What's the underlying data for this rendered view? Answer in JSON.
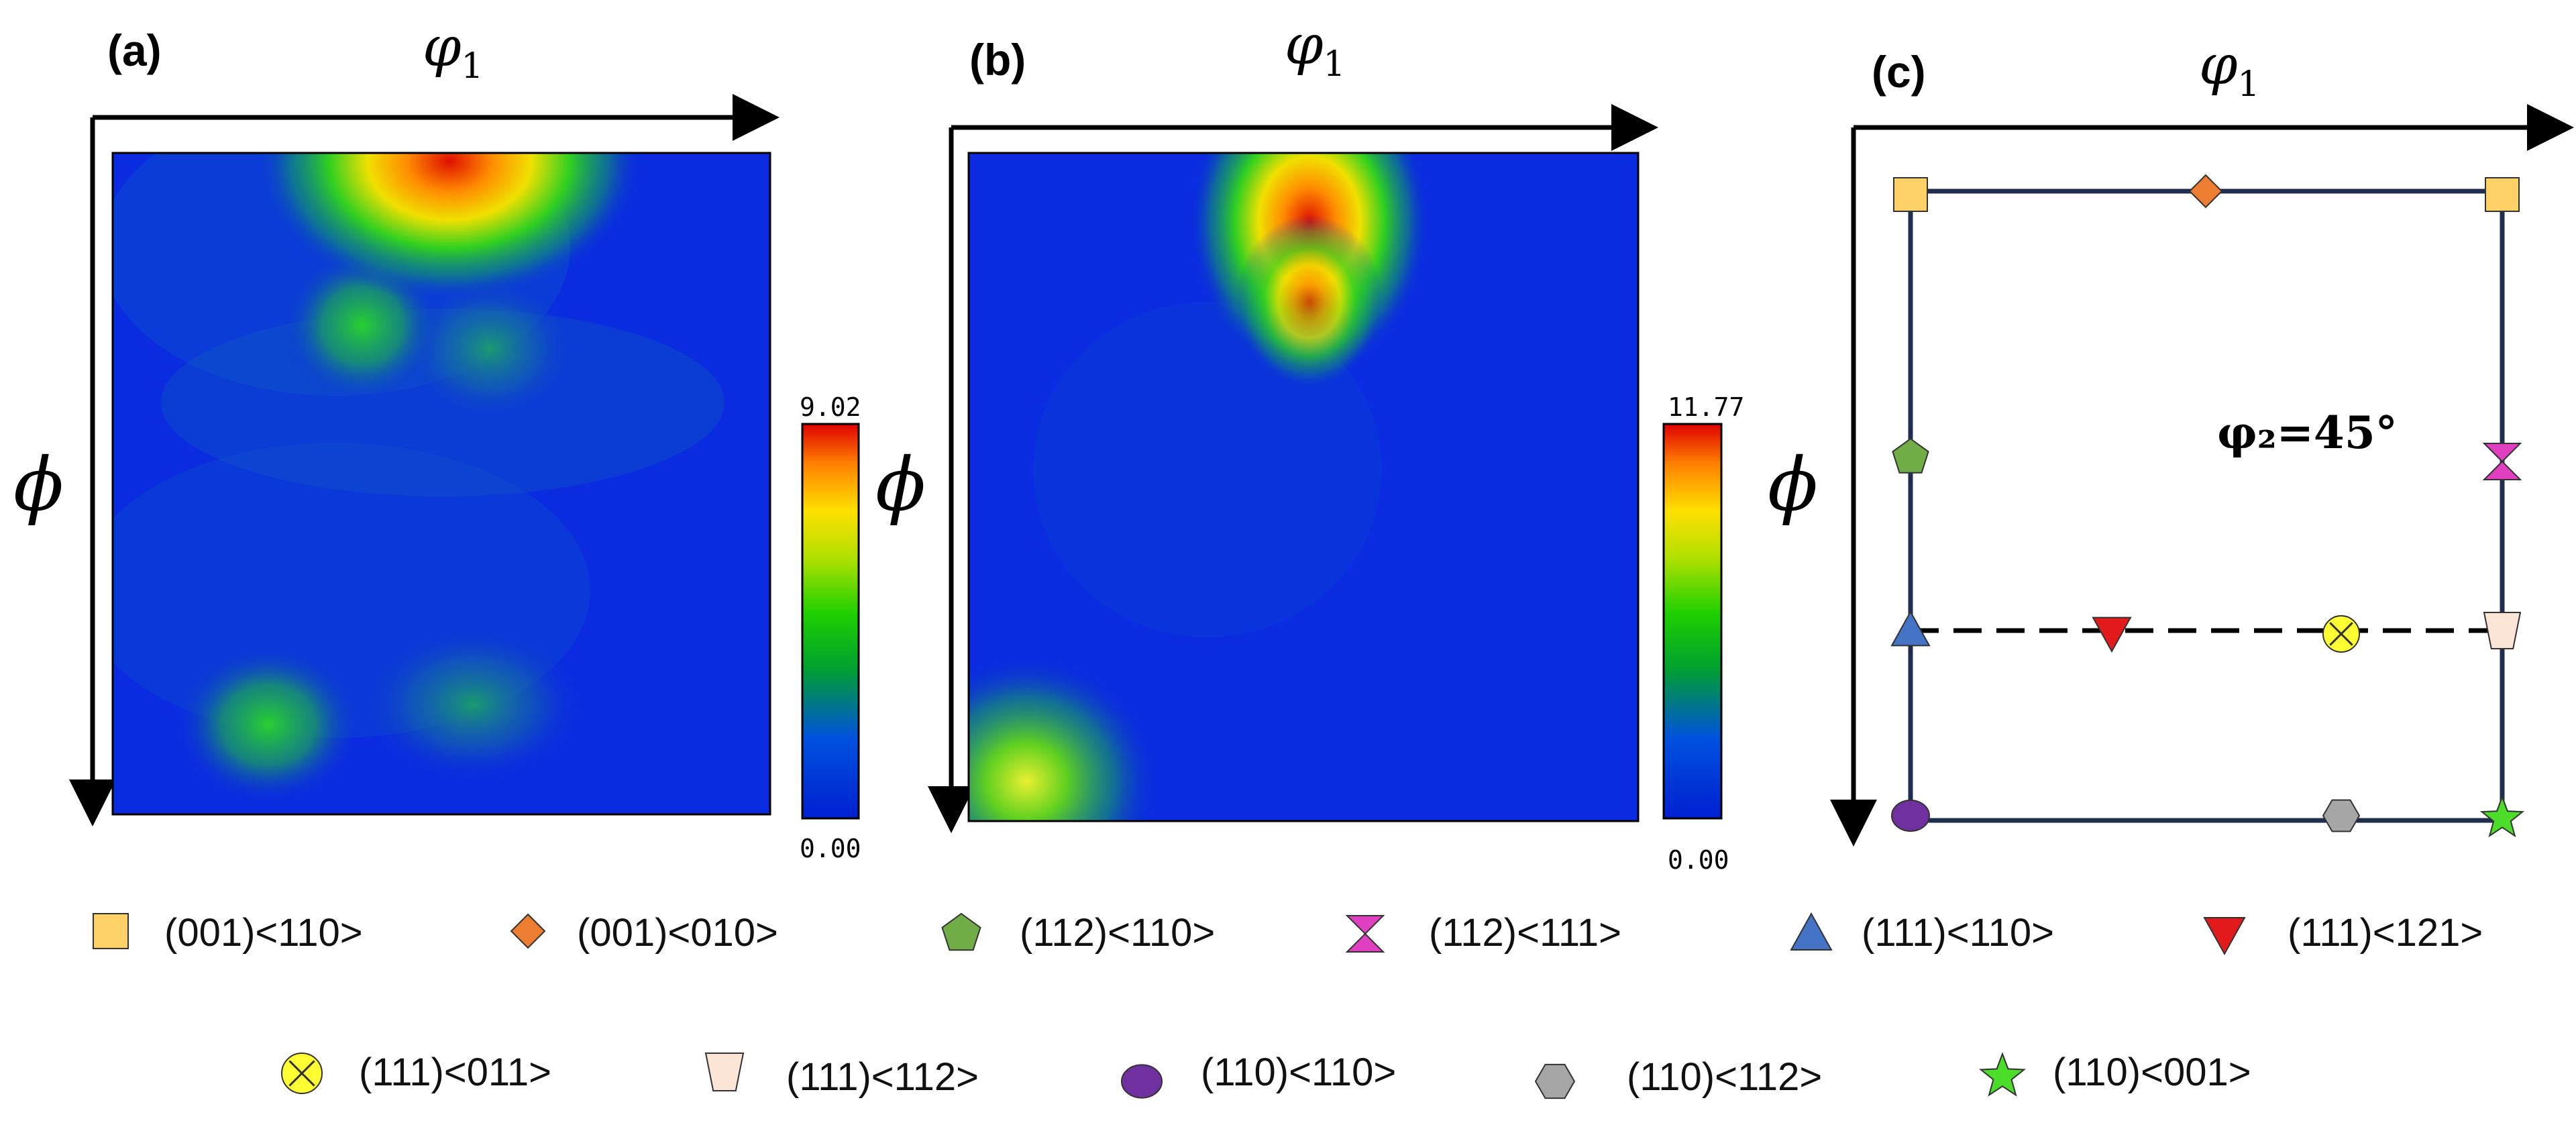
{
  "panels": {
    "a": {
      "label": "(a)",
      "cb_max": "9.02",
      "cb_min": "0.00"
    },
    "b": {
      "label": "(b)",
      "cb_max": "11.77",
      "cb_min": "0.00"
    },
    "c": {
      "label": "(c)",
      "phi2_note": "φ₂=45°"
    }
  },
  "axes": {
    "phi1": "φ",
    "phi1_sub": "1",
    "phi": "ϕ"
  },
  "legend": [
    {
      "label": "(001)<110>",
      "symbol": "square",
      "color": "#ffd166"
    },
    {
      "label": "(001)<010>",
      "symbol": "diamond",
      "color": "#ed7d31"
    },
    {
      "label": "(112)<110>",
      "symbol": "pentagon",
      "color": "#70ad47"
    },
    {
      "label": "(112)<111>",
      "symbol": "hourglass",
      "color": "#e040c0"
    },
    {
      "label": "(111)<110>",
      "symbol": "triangle-up",
      "color": "#4472c4"
    },
    {
      "label": "(111)<121>",
      "symbol": "triangle-down",
      "color": "#e31a1c"
    },
    {
      "label": "(111)<011>",
      "symbol": "circle-x",
      "color": "#ffff33"
    },
    {
      "label": "(111)<112>",
      "symbol": "trapezoid",
      "color": "#fbe5d6"
    },
    {
      "label": "(110)<110>",
      "symbol": "ellipse",
      "color": "#7030a0"
    },
    {
      "label": "(110)<112>",
      "symbol": "hexagon",
      "color": "#a6a6a6"
    },
    {
      "label": "(110)<001>",
      "symbol": "star",
      "color": "#4cdd2a"
    }
  ],
  "colors": {
    "background": "#0a2be0",
    "frame": "#1f2d4f"
  }
}
